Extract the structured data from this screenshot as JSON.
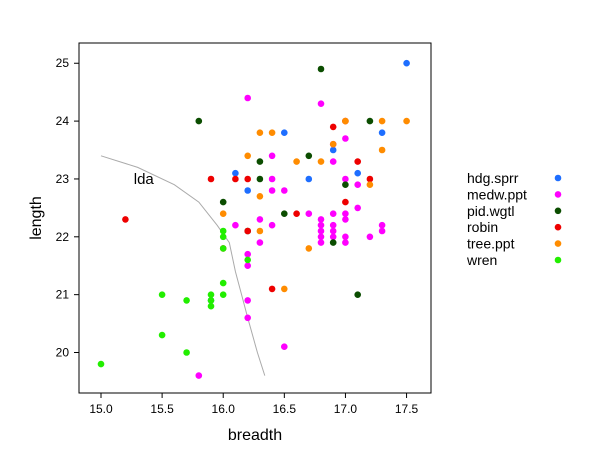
{
  "chart_data": {
    "type": "scatter",
    "xlabel": "breadth",
    "ylabel": "length",
    "xlim": [
      14.82,
      17.7
    ],
    "ylim": [
      19.3,
      25.35
    ],
    "xticks": [
      15.0,
      15.5,
      16.0,
      16.5,
      17.0,
      17.5
    ],
    "yticks": [
      20,
      21,
      22,
      23,
      24,
      25
    ],
    "xtick_labels": [
      "15.0",
      "15.5",
      "16.0",
      "16.5",
      "17.0",
      "17.5"
    ],
    "ytick_labels": [
      "20",
      "21",
      "22",
      "23",
      "24",
      "25"
    ],
    "legend_position": "right",
    "series": [
      {
        "name": "hdg.sprr",
        "color": "#1e6eff",
        "points": [
          [
            15.9,
            20.9
          ],
          [
            16.1,
            23.1
          ],
          [
            16.2,
            22.8
          ],
          [
            16.5,
            23.8
          ],
          [
            16.7,
            23.0
          ],
          [
            16.9,
            23.5
          ],
          [
            17.1,
            23.1
          ],
          [
            17.3,
            23.8
          ],
          [
            17.5,
            25.0
          ]
        ]
      },
      {
        "name": "medw.ppt",
        "color": "#ff00ff",
        "points": [
          [
            15.8,
            19.6
          ],
          [
            16.1,
            22.2
          ],
          [
            16.2,
            21.7
          ],
          [
            16.2,
            21.5
          ],
          [
            16.2,
            20.9
          ],
          [
            16.2,
            20.6
          ],
          [
            16.2,
            24.4
          ],
          [
            16.3,
            22.3
          ],
          [
            16.3,
            21.9
          ],
          [
            16.4,
            23.4
          ],
          [
            16.4,
            23.0
          ],
          [
            16.4,
            22.8
          ],
          [
            16.4,
            22.2
          ],
          [
            16.5,
            22.8
          ],
          [
            16.5,
            20.1
          ],
          [
            16.7,
            22.4
          ],
          [
            16.8,
            24.3
          ],
          [
            16.8,
            22.3
          ],
          [
            16.8,
            22.2
          ],
          [
            16.8,
            22.1
          ],
          [
            16.8,
            22.0
          ],
          [
            16.8,
            21.9
          ],
          [
            16.9,
            22.4
          ],
          [
            16.9,
            22.2
          ],
          [
            16.9,
            22.1
          ],
          [
            16.9,
            22.0
          ],
          [
            16.9,
            23.3
          ],
          [
            16.9,
            23.6
          ],
          [
            17.0,
            23.7
          ],
          [
            17.0,
            23.0
          ],
          [
            17.0,
            22.4
          ],
          [
            17.0,
            22.3
          ],
          [
            17.0,
            22.0
          ],
          [
            17.0,
            21.9
          ],
          [
            17.1,
            22.9
          ],
          [
            17.1,
            22.5
          ],
          [
            17.2,
            22.0
          ],
          [
            17.3,
            22.2
          ],
          [
            17.3,
            22.1
          ]
        ]
      },
      {
        "name": "pid.wgtl",
        "color": "#0b4d00",
        "points": [
          [
            15.8,
            24.0
          ],
          [
            16.0,
            22.6
          ],
          [
            16.2,
            22.1
          ],
          [
            16.3,
            23.0
          ],
          [
            16.3,
            23.3
          ],
          [
            16.5,
            22.4
          ],
          [
            16.7,
            23.4
          ],
          [
            16.8,
            24.9
          ],
          [
            16.9,
            21.9
          ],
          [
            17.0,
            22.9
          ],
          [
            17.1,
            21.0
          ],
          [
            17.2,
            24.0
          ]
        ]
      },
      {
        "name": "robin",
        "color": "#ee0000",
        "points": [
          [
            15.2,
            22.3
          ],
          [
            15.9,
            23.0
          ],
          [
            16.0,
            21.8
          ],
          [
            16.1,
            23.0
          ],
          [
            16.2,
            23.0
          ],
          [
            16.2,
            22.1
          ],
          [
            16.4,
            21.1
          ],
          [
            16.6,
            22.4
          ],
          [
            16.9,
            23.9
          ],
          [
            17.0,
            22.6
          ],
          [
            17.0,
            24.0
          ],
          [
            17.1,
            23.3
          ],
          [
            17.2,
            23.0
          ]
        ]
      },
      {
        "name": "tree.ppt",
        "color": "#ff8c00",
        "points": [
          [
            16.0,
            22.4
          ],
          [
            16.2,
            23.4
          ],
          [
            16.3,
            23.8
          ],
          [
            16.3,
            22.7
          ],
          [
            16.3,
            22.1
          ],
          [
            16.4,
            23.8
          ],
          [
            16.5,
            21.1
          ],
          [
            16.6,
            23.3
          ],
          [
            16.7,
            21.8
          ],
          [
            16.8,
            23.3
          ],
          [
            16.9,
            23.6
          ],
          [
            17.0,
            24.0
          ],
          [
            17.3,
            23.5
          ],
          [
            17.3,
            24.0
          ],
          [
            17.5,
            24.0
          ],
          [
            17.2,
            22.9
          ]
        ]
      },
      {
        "name": "wren",
        "color": "#22ee00",
        "points": [
          [
            15.0,
            19.8
          ],
          [
            15.5,
            21.0
          ],
          [
            15.5,
            20.3
          ],
          [
            15.7,
            20.9
          ],
          [
            15.7,
            20.0
          ],
          [
            15.9,
            21.0
          ],
          [
            15.9,
            20.9
          ],
          [
            15.9,
            20.8
          ],
          [
            16.0,
            21.0
          ],
          [
            16.0,
            21.2
          ],
          [
            16.0,
            21.8
          ],
          [
            16.0,
            22.0
          ],
          [
            16.0,
            22.1
          ],
          [
            16.2,
            21.6
          ]
        ]
      }
    ],
    "line": {
      "color": "#aaaaaa",
      "points": [
        [
          15.0,
          23.4
        ],
        [
          15.3,
          23.2
        ],
        [
          15.6,
          22.9
        ],
        [
          15.8,
          22.6
        ],
        [
          15.95,
          22.2
        ],
        [
          16.05,
          21.9
        ],
        [
          16.1,
          21.4
        ],
        [
          16.15,
          21.0
        ],
        [
          16.2,
          20.6
        ],
        [
          16.28,
          20.0
        ],
        [
          16.34,
          19.6
        ]
      ]
    },
    "annotations": [
      {
        "text": "lda",
        "x": 15.35,
        "y": 23.0
      }
    ]
  }
}
